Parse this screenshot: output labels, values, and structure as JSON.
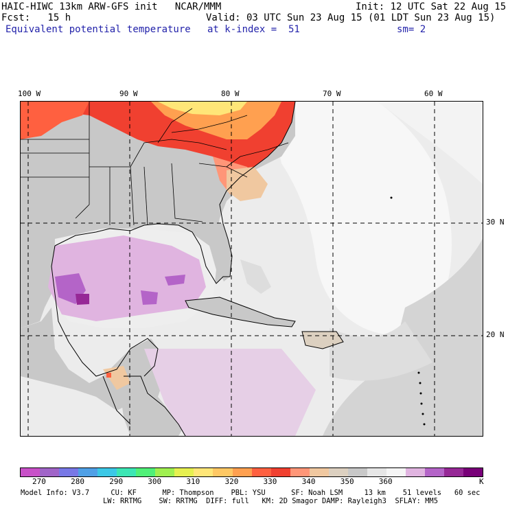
{
  "header": {
    "model": "HAIC-HIWC 13km ARW-GFS init   NCAR/MMM",
    "init": "Init: 12 UTC Sat 22 Aug 15",
    "fcst": "Fcst:   15 h",
    "valid": "Valid: 03 UTC Sun 23 Aug 15 (01 LDT Sun 23 Aug 15)",
    "field": "Equivalent potential temperature",
    "level": "at k-index =  51",
    "smooth": "sm= 2"
  },
  "map": {
    "lon_labels": [
      "100 W",
      "90 W",
      "80 W",
      "70 W",
      "60 W"
    ],
    "lat_labels": [
      "30 N",
      "20 N"
    ]
  },
  "colorbar": {
    "colors": [
      "#c850c8",
      "#a064c8",
      "#7878e6",
      "#50a0e6",
      "#3cc8e6",
      "#3ce6b4",
      "#50f078",
      "#a0f050",
      "#e6f050",
      "#ffe678",
      "#ffc864",
      "#ffa050",
      "#ff6040",
      "#f04030",
      "#ff9678",
      "#f0c8a0",
      "#dcd0c0",
      "#c8c8c8",
      "#e6e6e6",
      "#f5f5f5",
      "#e0b4e0",
      "#b464c8",
      "#962896",
      "#780078"
    ],
    "labels": [
      "270",
      "280",
      "290",
      "300",
      "310",
      "320",
      "330",
      "340",
      "350",
      "360"
    ],
    "unit": "K"
  },
  "footer": {
    "line1": "Model Info: V3.7     CU: KF      MP: Thompson    PBL: YSU      SF: Noah LSM     13 km    51 levels   60 sec",
    "line2": "LW: RRTMG    SW: RRTMG  DIFF: full   KM: 2D Smagor DAMP: Rayleigh3  SFLAY: MM5"
  }
}
